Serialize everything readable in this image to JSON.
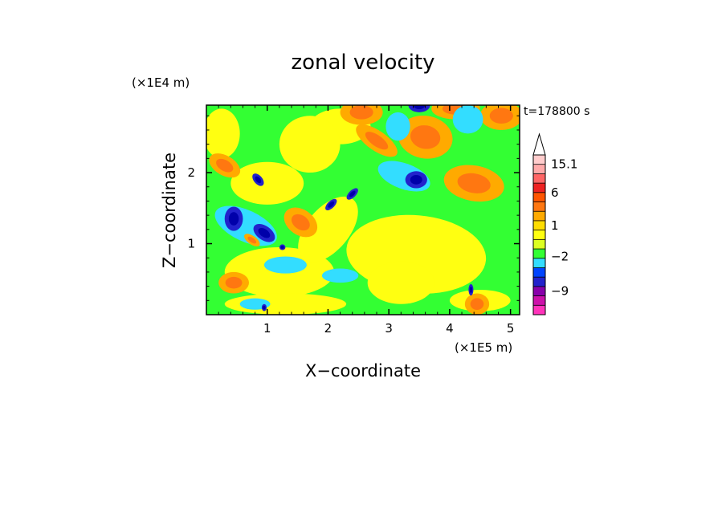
{
  "chart_data": {
    "type": "heatmap",
    "title": "zonal velocity",
    "xlabel": "X−coordinate",
    "ylabel": "Z−coordinate",
    "x_unit": "(×1E5 m)",
    "y_unit": "(×1E4 m)",
    "time_label": "t=178800 s",
    "xlim": [
      0,
      5.15
    ],
    "ylim": [
      0,
      2.95
    ],
    "x_ticks": [
      {
        "value": 1,
        "label": "1"
      },
      {
        "value": 2,
        "label": "2"
      },
      {
        "value": 3,
        "label": "3"
      },
      {
        "value": 4,
        "label": "4"
      },
      {
        "value": 5,
        "label": "5"
      }
    ],
    "y_ticks": [
      {
        "value": 1,
        "label": "1"
      },
      {
        "value": 2,
        "label": "2"
      }
    ],
    "background_level_color": "#33ff33",
    "colorbar": {
      "top_arrow": true,
      "levels": [
        {
          "color": "#ff33bb"
        },
        {
          "color": "#cc11aa"
        },
        {
          "color": "#8800aa"
        },
        {
          "color": "#2222cc"
        },
        {
          "color": "#0044ff"
        },
        {
          "color": "#33ddff"
        },
        {
          "color": "#33ff33"
        },
        {
          "color": "#ddff22"
        },
        {
          "color": "#ffff11"
        },
        {
          "color": "#ffdd00"
        },
        {
          "color": "#ffaa00"
        },
        {
          "color": "#ff7711"
        },
        {
          "color": "#ff5500"
        },
        {
          "color": "#ee2222"
        },
        {
          "color": "#ff6666"
        },
        {
          "color": "#ffaaaa"
        },
        {
          "color": "#ffcccc"
        }
      ],
      "labels": [
        {
          "text": "15.1",
          "level": 16
        },
        {
          "text": "6",
          "level": 13
        },
        {
          "text": "1",
          "level": 9.5
        },
        {
          "text": "−2",
          "level": 6.2
        },
        {
          "text": "−9",
          "level": 2.5
        }
      ]
    },
    "features": [
      {
        "kind": "yellow",
        "x": 3.45,
        "z": 0.85,
        "rx": 1.15,
        "rz": 0.55,
        "rot": -5
      },
      {
        "kind": "yellow",
        "x": 3.2,
        "z": 0.45,
        "rx": 0.55,
        "rz": 0.3,
        "rot": 0
      },
      {
        "kind": "yellow",
        "x": 1.2,
        "z": 0.6,
        "rx": 0.9,
        "rz": 0.35,
        "rot": 0
      },
      {
        "kind": "yellow",
        "x": 1.3,
        "z": 0.15,
        "rx": 1.0,
        "rz": 0.15,
        "rot": 0
      },
      {
        "kind": "yellow",
        "x": 2.0,
        "z": 1.2,
        "rx": 0.35,
        "rz": 0.55,
        "rot": -40
      },
      {
        "kind": "yellow",
        "x": 1.0,
        "z": 1.85,
        "rx": 0.6,
        "rz": 0.3,
        "rot": 0
      },
      {
        "kind": "yellow",
        "x": 0.25,
        "z": 2.55,
        "rx": 0.3,
        "rz": 0.35,
        "rot": 0
      },
      {
        "kind": "yellow",
        "x": 2.2,
        "z": 2.65,
        "rx": 0.5,
        "rz": 0.25,
        "rot": 0
      },
      {
        "kind": "yellow",
        "x": 4.5,
        "z": 0.2,
        "rx": 0.5,
        "rz": 0.15,
        "rot": 0
      },
      {
        "kind": "orange",
        "x": 3.6,
        "z": 2.5,
        "rx": 0.45,
        "rz": 0.3,
        "rot": -10
      },
      {
        "kind": "orange",
        "x": 4.4,
        "z": 1.85,
        "rx": 0.5,
        "rz": 0.25,
        "rot": -10
      },
      {
        "kind": "orange",
        "x": 4.85,
        "z": 2.8,
        "rx": 0.35,
        "rz": 0.2,
        "rot": 0
      },
      {
        "kind": "orange",
        "x": 4.1,
        "z": 2.9,
        "rx": 0.4,
        "rz": 0.15,
        "rot": 0
      },
      {
        "kind": "orange",
        "x": 2.55,
        "z": 2.85,
        "rx": 0.35,
        "rz": 0.18,
        "rot": 0
      },
      {
        "kind": "orange",
        "x": 1.55,
        "z": 1.3,
        "rx": 0.3,
        "rz": 0.18,
        "rot": -35
      },
      {
        "kind": "orange",
        "x": 0.45,
        "z": 0.45,
        "rx": 0.25,
        "rz": 0.15,
        "rot": 0
      },
      {
        "kind": "orange",
        "x": 0.3,
        "z": 2.1,
        "rx": 0.28,
        "rz": 0.14,
        "rot": -30
      },
      {
        "kind": "orange",
        "x": 2.8,
        "z": 2.45,
        "rx": 0.4,
        "rz": 0.14,
        "rot": -35
      },
      {
        "kind": "orange",
        "x": 4.45,
        "z": 0.15,
        "rx": 0.2,
        "rz": 0.15,
        "rot": 0
      },
      {
        "kind": "cyan",
        "x": 3.15,
        "z": 2.65,
        "rx": 0.2,
        "rz": 0.2,
        "rot": 0
      },
      {
        "kind": "cyan",
        "x": 4.3,
        "z": 2.75,
        "rx": 0.25,
        "rz": 0.2,
        "rot": 0
      },
      {
        "kind": "cyan",
        "x": 1.3,
        "z": 0.7,
        "rx": 0.35,
        "rz": 0.12,
        "rot": 0
      },
      {
        "kind": "cyan",
        "x": 2.2,
        "z": 0.55,
        "rx": 0.3,
        "rz": 0.1,
        "rot": 0
      },
      {
        "kind": "cyan",
        "x": 0.65,
        "z": 1.25,
        "rx": 0.55,
        "rz": 0.22,
        "rot": -25
      },
      {
        "kind": "cyan",
        "x": 3.25,
        "z": 1.95,
        "rx": 0.45,
        "rz": 0.18,
        "rot": -20
      },
      {
        "kind": "cyan",
        "x": 0.8,
        "z": 0.15,
        "rx": 0.25,
        "rz": 0.08,
        "rot": 0
      },
      {
        "kind": "navy",
        "x": 3.5,
        "z": 2.95,
        "rx": 0.18,
        "rz": 0.1,
        "rot": 0
      },
      {
        "kind": "navy",
        "x": 3.45,
        "z": 1.9,
        "rx": 0.18,
        "rz": 0.12,
        "rot": 0
      },
      {
        "kind": "navy",
        "x": 0.45,
        "z": 1.35,
        "rx": 0.15,
        "rz": 0.17,
        "rot": 0
      },
      {
        "kind": "navy",
        "x": 0.95,
        "z": 1.15,
        "rx": 0.2,
        "rz": 0.1,
        "rot": -35
      },
      {
        "kind": "navy",
        "x": 0.85,
        "z": 1.9,
        "rx": 0.12,
        "rz": 0.06,
        "rot": -50
      },
      {
        "kind": "navy",
        "x": 2.4,
        "z": 1.7,
        "rx": 0.12,
        "rz": 0.05,
        "rot": 45
      },
      {
        "kind": "navy",
        "x": 2.05,
        "z": 1.55,
        "rx": 0.12,
        "rz": 0.05,
        "rot": 45
      },
      {
        "kind": "navy",
        "x": 4.35,
        "z": 0.35,
        "rx": 0.04,
        "rz": 0.08,
        "rot": 0
      },
      {
        "kind": "navy",
        "x": 0.95,
        "z": 0.1,
        "rx": 0.04,
        "rz": 0.05,
        "rot": 0
      },
      {
        "kind": "navy",
        "x": 1.25,
        "z": 0.95,
        "rx": 0.05,
        "rz": 0.04,
        "rot": 0
      },
      {
        "kind": "orange",
        "x": 0.75,
        "z": 1.05,
        "rx": 0.15,
        "rz": 0.06,
        "rot": -35
      },
      {
        "kind": "yellow",
        "x": 1.7,
        "z": 2.4,
        "rx": 0.5,
        "rz": 0.4,
        "rot": 0
      }
    ]
  }
}
